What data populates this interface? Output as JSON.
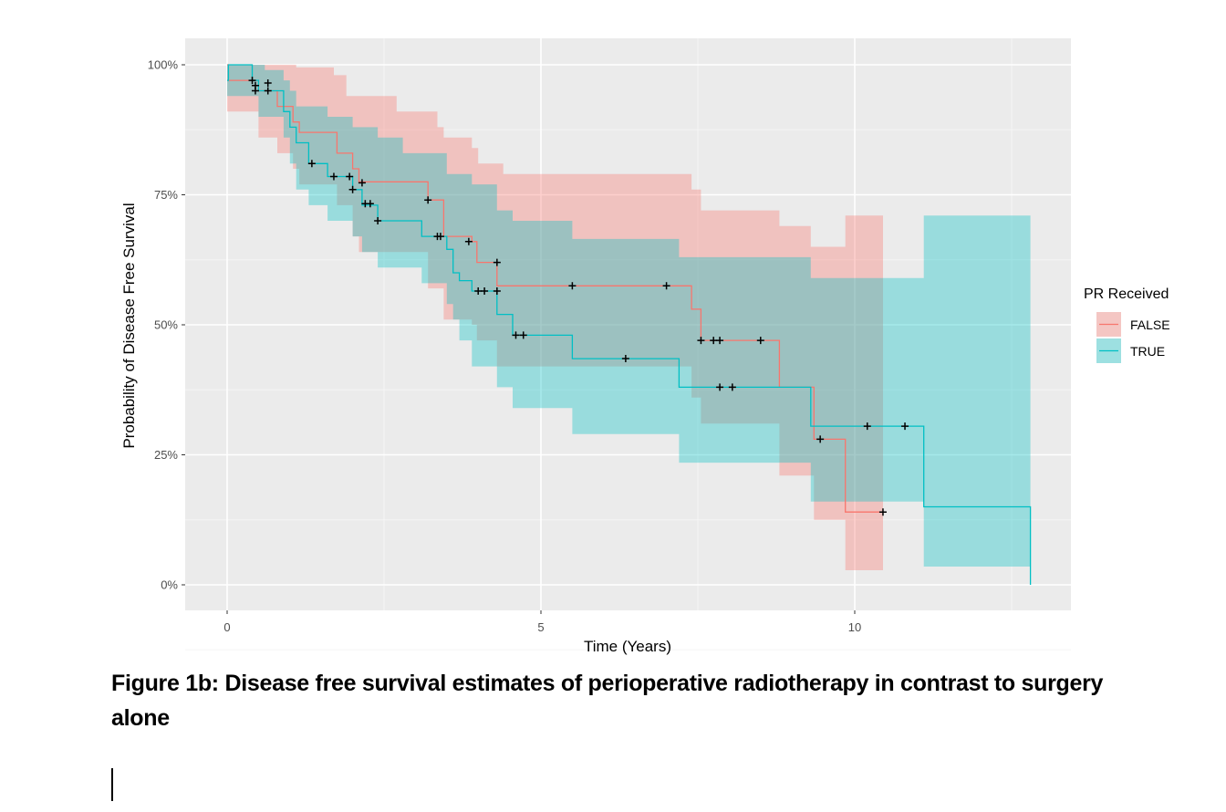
{
  "caption": "Figure 1b: Disease free survival estimates of perioperative radiotherapy in contrast to surgery alone",
  "chart_data": {
    "type": "line",
    "subtype": "kaplan-meier step curve with confidence bands",
    "xlabel": "Time (Years)",
    "ylabel": "Probability of Disease Free Survival",
    "xlim": [
      -0.7,
      13.4
    ],
    "ylim": [
      -0.05,
      1.05
    ],
    "x_ticks": [
      0,
      5,
      10
    ],
    "x_tick_labels": [
      "0",
      "5",
      "10"
    ],
    "y_ticks": [
      0,
      0.25,
      0.5,
      0.75,
      1.0
    ],
    "y_tick_labels": [
      "0%",
      "25%",
      "50%",
      "75%",
      "100%"
    ],
    "grid": true,
    "legend": {
      "title": "PR Received",
      "position": "right"
    },
    "series": [
      {
        "name": "FALSE",
        "color": "#F8766D",
        "steps": [
          [
            0,
            1.0
          ],
          [
            0.02,
            0.97
          ],
          [
            0.5,
            0.95
          ],
          [
            0.8,
            0.92
          ],
          [
            1.05,
            0.89
          ],
          [
            1.15,
            0.87
          ],
          [
            1.75,
            0.83
          ],
          [
            2.0,
            0.8
          ],
          [
            2.1,
            0.775
          ],
          [
            3.2,
            0.74
          ],
          [
            3.45,
            0.67
          ],
          [
            3.9,
            0.66
          ],
          [
            3.98,
            0.62
          ],
          [
            4.3,
            0.575
          ],
          [
            7.4,
            0.53
          ],
          [
            7.55,
            0.47
          ],
          [
            8.8,
            0.38
          ],
          [
            9.35,
            0.28
          ],
          [
            9.85,
            0.14
          ],
          [
            10.45,
            0.14
          ]
        ],
        "lower": [
          [
            0,
            0.91
          ],
          [
            0.5,
            0.86
          ],
          [
            0.8,
            0.83
          ],
          [
            1.05,
            0.8
          ],
          [
            1.15,
            0.77
          ],
          [
            1.75,
            0.73
          ],
          [
            2.0,
            0.67
          ],
          [
            2.1,
            0.64
          ],
          [
            3.2,
            0.57
          ],
          [
            3.45,
            0.51
          ],
          [
            3.9,
            0.5
          ],
          [
            3.98,
            0.47
          ],
          [
            4.3,
            0.42
          ],
          [
            7.4,
            0.36
          ],
          [
            7.55,
            0.31
          ],
          [
            8.8,
            0.21
          ],
          [
            9.35,
            0.125
          ],
          [
            9.85,
            0.028
          ],
          [
            10.45,
            0.028
          ]
        ],
        "upper": [
          [
            0,
            1.0
          ],
          [
            0.9,
            1.0
          ],
          [
            1.1,
            0.995
          ],
          [
            1.7,
            0.98
          ],
          [
            1.9,
            0.94
          ],
          [
            2.7,
            0.91
          ],
          [
            3.35,
            0.88
          ],
          [
            3.45,
            0.86
          ],
          [
            3.9,
            0.84
          ],
          [
            4.0,
            0.81
          ],
          [
            4.4,
            0.79
          ],
          [
            7.4,
            0.76
          ],
          [
            7.55,
            0.72
          ],
          [
            8.8,
            0.69
          ],
          [
            9.3,
            0.65
          ],
          [
            9.85,
            0.71
          ],
          [
            10.45,
            0.71
          ]
        ],
        "censor_marks": [
          [
            0.4,
            0.97
          ],
          [
            0.45,
            0.96
          ],
          [
            0.65,
            0.965
          ],
          [
            0.65,
            0.95
          ],
          [
            3.2,
            0.74
          ],
          [
            4.3,
            0.62
          ],
          [
            5.5,
            0.575
          ],
          [
            7.0,
            0.575
          ],
          [
            7.55,
            0.47
          ],
          [
            7.75,
            0.47
          ],
          [
            7.85,
            0.47
          ],
          [
            8.5,
            0.47
          ],
          [
            9.45,
            0.28
          ],
          [
            10.45,
            0.14
          ]
        ]
      },
      {
        "name": "TRUE",
        "color": "#00BFC4",
        "steps": [
          [
            0,
            0.97
          ],
          [
            0.02,
            1.0
          ],
          [
            0.4,
            0.97
          ],
          [
            0.5,
            0.95
          ],
          [
            0.9,
            0.91
          ],
          [
            1.0,
            0.88
          ],
          [
            1.1,
            0.85
          ],
          [
            1.3,
            0.81
          ],
          [
            1.6,
            0.785
          ],
          [
            2.0,
            0.76
          ],
          [
            2.15,
            0.73
          ],
          [
            2.4,
            0.7
          ],
          [
            3.1,
            0.67
          ],
          [
            3.5,
            0.645
          ],
          [
            3.6,
            0.6
          ],
          [
            3.7,
            0.585
          ],
          [
            3.9,
            0.565
          ],
          [
            4.3,
            0.52
          ],
          [
            4.55,
            0.48
          ],
          [
            5.5,
            0.435
          ],
          [
            7.2,
            0.38
          ],
          [
            9.3,
            0.305
          ],
          [
            11.1,
            0.15
          ],
          [
            12.8,
            0.0
          ]
        ],
        "lower": [
          [
            0,
            0.94
          ],
          [
            0.5,
            0.9
          ],
          [
            0.9,
            0.86
          ],
          [
            1.0,
            0.81
          ],
          [
            1.1,
            0.76
          ],
          [
            1.3,
            0.73
          ],
          [
            1.6,
            0.7
          ],
          [
            2.0,
            0.67
          ],
          [
            2.15,
            0.64
          ],
          [
            2.4,
            0.61
          ],
          [
            3.1,
            0.58
          ],
          [
            3.5,
            0.54
          ],
          [
            3.6,
            0.51
          ],
          [
            3.7,
            0.47
          ],
          [
            3.9,
            0.42
          ],
          [
            4.3,
            0.38
          ],
          [
            4.55,
            0.34
          ],
          [
            5.5,
            0.29
          ],
          [
            7.2,
            0.235
          ],
          [
            9.3,
            0.16
          ],
          [
            11.1,
            0.035
          ],
          [
            12.8,
            0.035
          ]
        ],
        "upper": [
          [
            0,
            1.0
          ],
          [
            0.4,
            1.0
          ],
          [
            0.6,
            0.99
          ],
          [
            0.9,
            0.97
          ],
          [
            1.0,
            0.95
          ],
          [
            1.1,
            0.92
          ],
          [
            1.6,
            0.9
          ],
          [
            2.0,
            0.88
          ],
          [
            2.4,
            0.86
          ],
          [
            2.8,
            0.83
          ],
          [
            3.5,
            0.79
          ],
          [
            3.9,
            0.77
          ],
          [
            4.3,
            0.72
          ],
          [
            4.55,
            0.7
          ],
          [
            5.5,
            0.665
          ],
          [
            7.2,
            0.63
          ],
          [
            9.3,
            0.59
          ],
          [
            11.1,
            0.71
          ],
          [
            12.8,
            0.71
          ]
        ],
        "censor_marks": [
          [
            0.45,
            0.95
          ],
          [
            1.35,
            0.81
          ],
          [
            1.7,
            0.785
          ],
          [
            1.95,
            0.785
          ],
          [
            2.0,
            0.76
          ],
          [
            2.15,
            0.773
          ],
          [
            2.2,
            0.733
          ],
          [
            2.28,
            0.733
          ],
          [
            2.4,
            0.7
          ],
          [
            3.35,
            0.67
          ],
          [
            3.4,
            0.67
          ],
          [
            3.85,
            0.66
          ],
          [
            4.3,
            0.565
          ],
          [
            4.0,
            0.565
          ],
          [
            4.1,
            0.565
          ],
          [
            4.6,
            0.48
          ],
          [
            4.72,
            0.48
          ],
          [
            6.35,
            0.435
          ],
          [
            7.85,
            0.38
          ],
          [
            8.05,
            0.38
          ],
          [
            10.2,
            0.305
          ],
          [
            10.8,
            0.305
          ]
        ]
      }
    ]
  }
}
